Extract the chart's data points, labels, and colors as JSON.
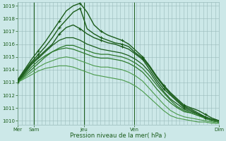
{
  "background_color": "#cce8e8",
  "grid_color": "#99bbbb",
  "line_color_dark": "#1a5c1a",
  "line_color_med": "#2d7a2d",
  "line_color_light": "#4a9a4a",
  "ylabel_min": 1010,
  "ylabel_max": 1019,
  "xtick_positions": [
    0.0,
    0.08,
    0.33,
    0.58,
    1.0
  ],
  "xtick_labels": [
    "Mer",
    "Sam",
    "Jeu",
    "Ven",
    "Dim"
  ],
  "xlabel_text": "Pression niveau de la mer( hPa )",
  "series": [
    {
      "y": [
        1013.0,
        1013.8,
        1014.5,
        1015.0,
        1015.5,
        1016.0,
        1016.8,
        1017.3,
        1017.5,
        1017.2,
        1016.8,
        1016.5,
        1016.3,
        1016.1,
        1016.0,
        1015.8,
        1015.6,
        1015.2,
        1014.8,
        1014.0,
        1013.2,
        1012.5,
        1012.0,
        1011.5,
        1011.0,
        1010.8,
        1010.5,
        1010.2,
        1010.0,
        1009.9
      ],
      "color": "dark",
      "marker": true,
      "lw": 1.0
    },
    {
      "y": [
        1013.1,
        1013.9,
        1014.6,
        1015.2,
        1015.8,
        1016.5,
        1017.3,
        1017.9,
        1018.5,
        1018.8,
        1017.2,
        1016.8,
        1016.5,
        1016.3,
        1016.1,
        1016.0,
        1015.8,
        1015.3,
        1014.9,
        1014.2,
        1013.4,
        1012.7,
        1012.1,
        1011.6,
        1011.1,
        1010.9,
        1010.6,
        1010.3,
        1010.1,
        1010.0
      ],
      "color": "dark",
      "marker": true,
      "lw": 1.0
    },
    {
      "y": [
        1013.2,
        1014.0,
        1014.8,
        1015.5,
        1016.2,
        1017.0,
        1017.8,
        1018.6,
        1019.0,
        1019.2,
        1018.5,
        1017.5,
        1017.0,
        1016.7,
        1016.5,
        1016.3,
        1016.0,
        1015.5,
        1015.0,
        1014.3,
        1013.5,
        1012.8,
        1012.2,
        1011.7,
        1011.2,
        1011.0,
        1010.8,
        1010.5,
        1010.2,
        1010.0
      ],
      "color": "dark",
      "marker": true,
      "lw": 1.0
    },
    {
      "y": [
        1013.0,
        1013.7,
        1014.4,
        1014.9,
        1015.4,
        1015.9,
        1016.3,
        1016.5,
        1016.5,
        1016.3,
        1016.0,
        1015.8,
        1015.6,
        1015.5,
        1015.4,
        1015.3,
        1015.1,
        1014.8,
        1014.4,
        1013.8,
        1013.0,
        1012.3,
        1011.7,
        1011.3,
        1010.9,
        1010.7,
        1010.5,
        1010.3,
        1010.1,
        1010.0
      ],
      "color": "dark",
      "marker": false,
      "lw": 0.9
    },
    {
      "y": [
        1013.0,
        1013.6,
        1014.2,
        1014.7,
        1015.1,
        1015.4,
        1015.6,
        1015.7,
        1015.6,
        1015.4,
        1015.2,
        1015.0,
        1014.9,
        1014.9,
        1014.8,
        1014.7,
        1014.5,
        1014.2,
        1013.8,
        1013.2,
        1012.5,
        1011.9,
        1011.4,
        1011.0,
        1010.7,
        1010.6,
        1010.4,
        1010.2,
        1010.0,
        1009.9
      ],
      "color": "med",
      "marker": false,
      "lw": 0.9
    },
    {
      "y": [
        1013.0,
        1013.5,
        1014.0,
        1014.5,
        1015.0,
        1015.4,
        1015.7,
        1015.9,
        1015.9,
        1015.7,
        1015.5,
        1015.3,
        1015.2,
        1015.2,
        1015.1,
        1015.0,
        1014.8,
        1014.5,
        1014.1,
        1013.5,
        1012.8,
        1012.2,
        1011.6,
        1011.1,
        1010.8,
        1010.6,
        1010.4,
        1010.2,
        1010.0,
        1009.9
      ],
      "color": "med",
      "marker": false,
      "lw": 0.9
    },
    {
      "y": [
        1013.0,
        1013.4,
        1013.8,
        1014.2,
        1014.5,
        1014.7,
        1014.9,
        1015.0,
        1014.9,
        1014.7,
        1014.5,
        1014.3,
        1014.2,
        1014.2,
        1014.1,
        1014.0,
        1013.8,
        1013.5,
        1013.1,
        1012.5,
        1011.9,
        1011.3,
        1010.8,
        1010.5,
        1010.3,
        1010.2,
        1010.1,
        1010.0,
        1009.9,
        1009.8
      ],
      "color": "light",
      "marker": false,
      "lw": 0.8
    },
    {
      "y": [
        1013.0,
        1013.3,
        1013.6,
        1013.9,
        1014.1,
        1014.2,
        1014.3,
        1014.3,
        1014.2,
        1014.0,
        1013.8,
        1013.6,
        1013.5,
        1013.4,
        1013.3,
        1013.2,
        1013.0,
        1012.7,
        1012.3,
        1011.8,
        1011.3,
        1010.8,
        1010.4,
        1010.2,
        1010.1,
        1010.0,
        1009.9,
        1009.9,
        1009.8,
        1009.8
      ],
      "color": "light",
      "marker": false,
      "lw": 0.8
    }
  ]
}
